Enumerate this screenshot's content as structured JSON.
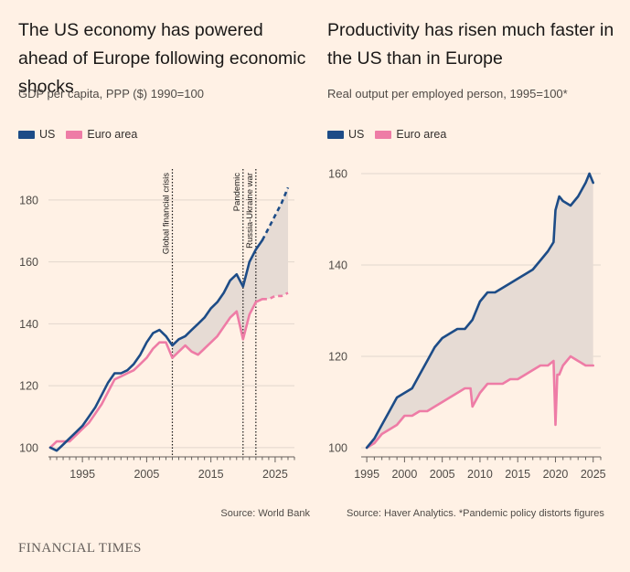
{
  "brand": "FINANCIAL TIMES",
  "colors": {
    "background": "#fff1e5",
    "us": "#1d4c87",
    "euro": "#ee7ca6",
    "gap_fill": "#e6dbd4",
    "axis": "#4f4b47"
  },
  "chart_data": [
    {
      "type": "line",
      "title": "The US economy has powered ahead of Europe following economic shocks",
      "subtitle": "GDP per capita, PPP ($) 1990=100",
      "source": "Source: World Bank",
      "legend": [
        "US",
        "Euro area"
      ],
      "legend_placement": "top-left",
      "xlim": [
        1990,
        2028
      ],
      "ylim": [
        97,
        190
      ],
      "xticks": [
        1995,
        2005,
        2015,
        2025
      ],
      "xtick_labels": [
        "1995",
        "2005",
        "2015",
        "2025"
      ],
      "yticks": [
        100,
        120,
        140,
        160,
        180
      ],
      "ytick_labels": [
        "100",
        "120",
        "140",
        "160",
        "180"
      ],
      "grid": true,
      "annotations": [
        {
          "x": 2009,
          "label": "Global financial crisis"
        },
        {
          "x": 2020,
          "label": "Pandemic"
        },
        {
          "x": 2022,
          "label": "Russia-Ukraine war"
        }
      ],
      "series": [
        {
          "name": "US",
          "x": [
            1990,
            1991,
            1992,
            1993,
            1994,
            1995,
            1996,
            1997,
            1998,
            1999,
            2000,
            2001,
            2002,
            2003,
            2004,
            2005,
            2006,
            2007,
            2008,
            2009,
            2010,
            2011,
            2012,
            2013,
            2014,
            2015,
            2016,
            2017,
            2018,
            2019,
            2020,
            2021,
            2022,
            2023
          ],
          "values": [
            100,
            99,
            101,
            103,
            105,
            107,
            110,
            113,
            117,
            121,
            124,
            124,
            125,
            127,
            130,
            134,
            137,
            138,
            136,
            133,
            135,
            136,
            138,
            140,
            142,
            145,
            147,
            150,
            154,
            156,
            152,
            160,
            164,
            167
          ],
          "projection": {
            "x": [
              2023,
              2024,
              2025,
              2026,
              2027
            ],
            "values": [
              167,
              171,
              175,
              179,
              184
            ]
          }
        },
        {
          "name": "Euro area",
          "x": [
            1990,
            1991,
            1992,
            1993,
            1994,
            1995,
            1996,
            1997,
            1998,
            1999,
            2000,
            2001,
            2002,
            2003,
            2004,
            2005,
            2006,
            2007,
            2008,
            2009,
            2010,
            2011,
            2012,
            2013,
            2014,
            2015,
            2016,
            2017,
            2018,
            2019,
            2020,
            2021,
            2022,
            2023
          ],
          "values": [
            100,
            102,
            102,
            102,
            104,
            106,
            108,
            111,
            114,
            118,
            122,
            123,
            124,
            125,
            127,
            129,
            132,
            134,
            134,
            129,
            131,
            133,
            131,
            130,
            132,
            134,
            136,
            139,
            142,
            144,
            135,
            143,
            147,
            148
          ],
          "projection": {
            "x": [
              2023,
              2024,
              2025,
              2026,
              2027
            ],
            "values": [
              148,
              148,
              149,
              149,
              150
            ]
          }
        }
      ]
    },
    {
      "type": "line",
      "title": "Productivity has risen much faster in the US than in Europe",
      "subtitle": "Real output per employed person, 1995=100*",
      "source": "Source: Haver Analytics. *Pandemic policy distorts figures",
      "legend": [
        "US",
        "Euro area"
      ],
      "legend_placement": "top-left",
      "xlim": [
        1994.5,
        2026
      ],
      "ylim": [
        98,
        164
      ],
      "xticks": [
        1995,
        2000,
        2005,
        2010,
        2015,
        2020,
        2025
      ],
      "xtick_labels": [
        "1995",
        "2000",
        "2005",
        "2010",
        "2015",
        "2020",
        "2025"
      ],
      "yticks": [
        100,
        120,
        140,
        160
      ],
      "ytick_labels": [
        "100",
        "120",
        "140",
        "160"
      ],
      "grid": true,
      "series": [
        {
          "name": "US",
          "x": [
            1995,
            1996,
            1997,
            1998,
            1999,
            2000,
            2001,
            2002,
            2003,
            2004,
            2005,
            2006,
            2007,
            2008,
            2009,
            2010,
            2011,
            2012,
            2013,
            2014,
            2015,
            2016,
            2017,
            2018,
            2019,
            2019.75,
            2020,
            2020.5,
            2021,
            2022,
            2023,
            2024,
            2024.5,
            2025
          ],
          "values": [
            100,
            102,
            105,
            108,
            111,
            112,
            113,
            116,
            119,
            122,
            124,
            125,
            126,
            126,
            128,
            132,
            134,
            134,
            135,
            136,
            137,
            138,
            139,
            141,
            143,
            145,
            152,
            155,
            154,
            153,
            155,
            158,
            160,
            158
          ]
        },
        {
          "name": "Euro area",
          "x": [
            1995,
            1996,
            1997,
            1998,
            1999,
            2000,
            2001,
            2002,
            2003,
            2004,
            2005,
            2006,
            2007,
            2008,
            2008.75,
            2009,
            2010,
            2011,
            2012,
            2013,
            2014,
            2015,
            2016,
            2017,
            2018,
            2019,
            2019.75,
            2020,
            2020.25,
            2020.5,
            2021,
            2022,
            2023,
            2024,
            2025
          ],
          "values": [
            100,
            101,
            103,
            104,
            105,
            107,
            107,
            108,
            108,
            109,
            110,
            111,
            112,
            113,
            113,
            109,
            112,
            114,
            114,
            114,
            115,
            115,
            116,
            117,
            118,
            118,
            119,
            105,
            116,
            116,
            118,
            120,
            119,
            118,
            118
          ]
        }
      ]
    }
  ]
}
